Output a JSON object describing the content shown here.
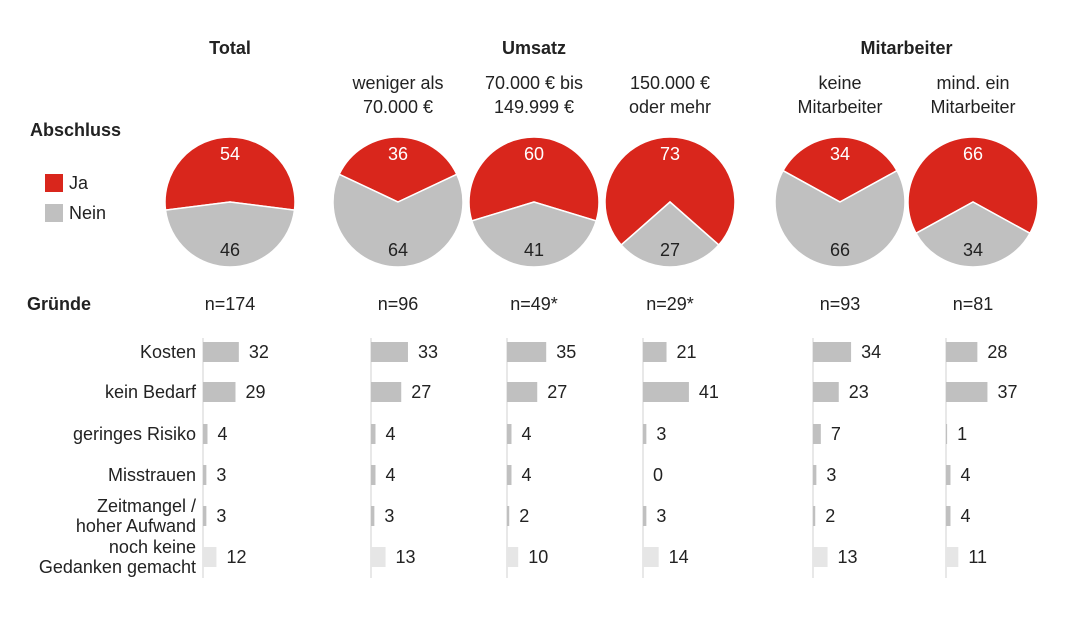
{
  "chart_data": {
    "type": "panels",
    "pie_title": "Abschluss",
    "bar_title": "Gründe",
    "pie_series": [
      {
        "name": "Ja",
        "color": "#d9261c"
      },
      {
        "name": "Nein",
        "color": "#c0c0c0"
      }
    ],
    "categories": [
      "Kosten",
      "kein Bedarf",
      "geringes Risiko",
      "Misstrauen",
      "Zeitmangel /\nhoher Aufwand",
      "noch keine\nGedanken gemacht"
    ],
    "bar_colors": [
      "#c0c0c0",
      "#c0c0c0",
      "#c0c0c0",
      "#c0c0c0",
      "#c0c0c0",
      "#e6e6e6"
    ],
    "groups": [
      {
        "title": "Total",
        "columns": [
          {
            "n": "n=174",
            "pie": [
              54,
              46
            ],
            "values": [
              32,
              29,
              4,
              3,
              3,
              12
            ]
          }
        ]
      },
      {
        "title": "Umsatz",
        "columns": [
          {
            "label": "weniger als\n70.000 €",
            "n": "n=96",
            "pie": [
              36,
              64
            ],
            "values": [
              33,
              27,
              4,
              4,
              3,
              13
            ]
          },
          {
            "label": "70.000 € bis\n149.999 €",
            "n": "n=49*",
            "pie": [
              60,
              41
            ],
            "values": [
              35,
              27,
              4,
              4,
              2,
              10
            ]
          },
          {
            "label": "150.000 €\noder mehr",
            "n": "n=29*",
            "pie": [
              73,
              27
            ],
            "values": [
              21,
              41,
              3,
              0,
              3,
              14
            ]
          }
        ]
      },
      {
        "title": "Mitarbeiter",
        "columns": [
          {
            "label": "keine\nMitarbeiter",
            "n": "n=93",
            "pie": [
              34,
              66
            ],
            "values": [
              34,
              23,
              7,
              3,
              2,
              13
            ]
          },
          {
            "label": "mind. ein\nMitarbeiter",
            "n": "n=81",
            "pie": [
              66,
              34
            ],
            "values": [
              28,
              37,
              1,
              4,
              4,
              11
            ]
          }
        ]
      }
    ]
  }
}
